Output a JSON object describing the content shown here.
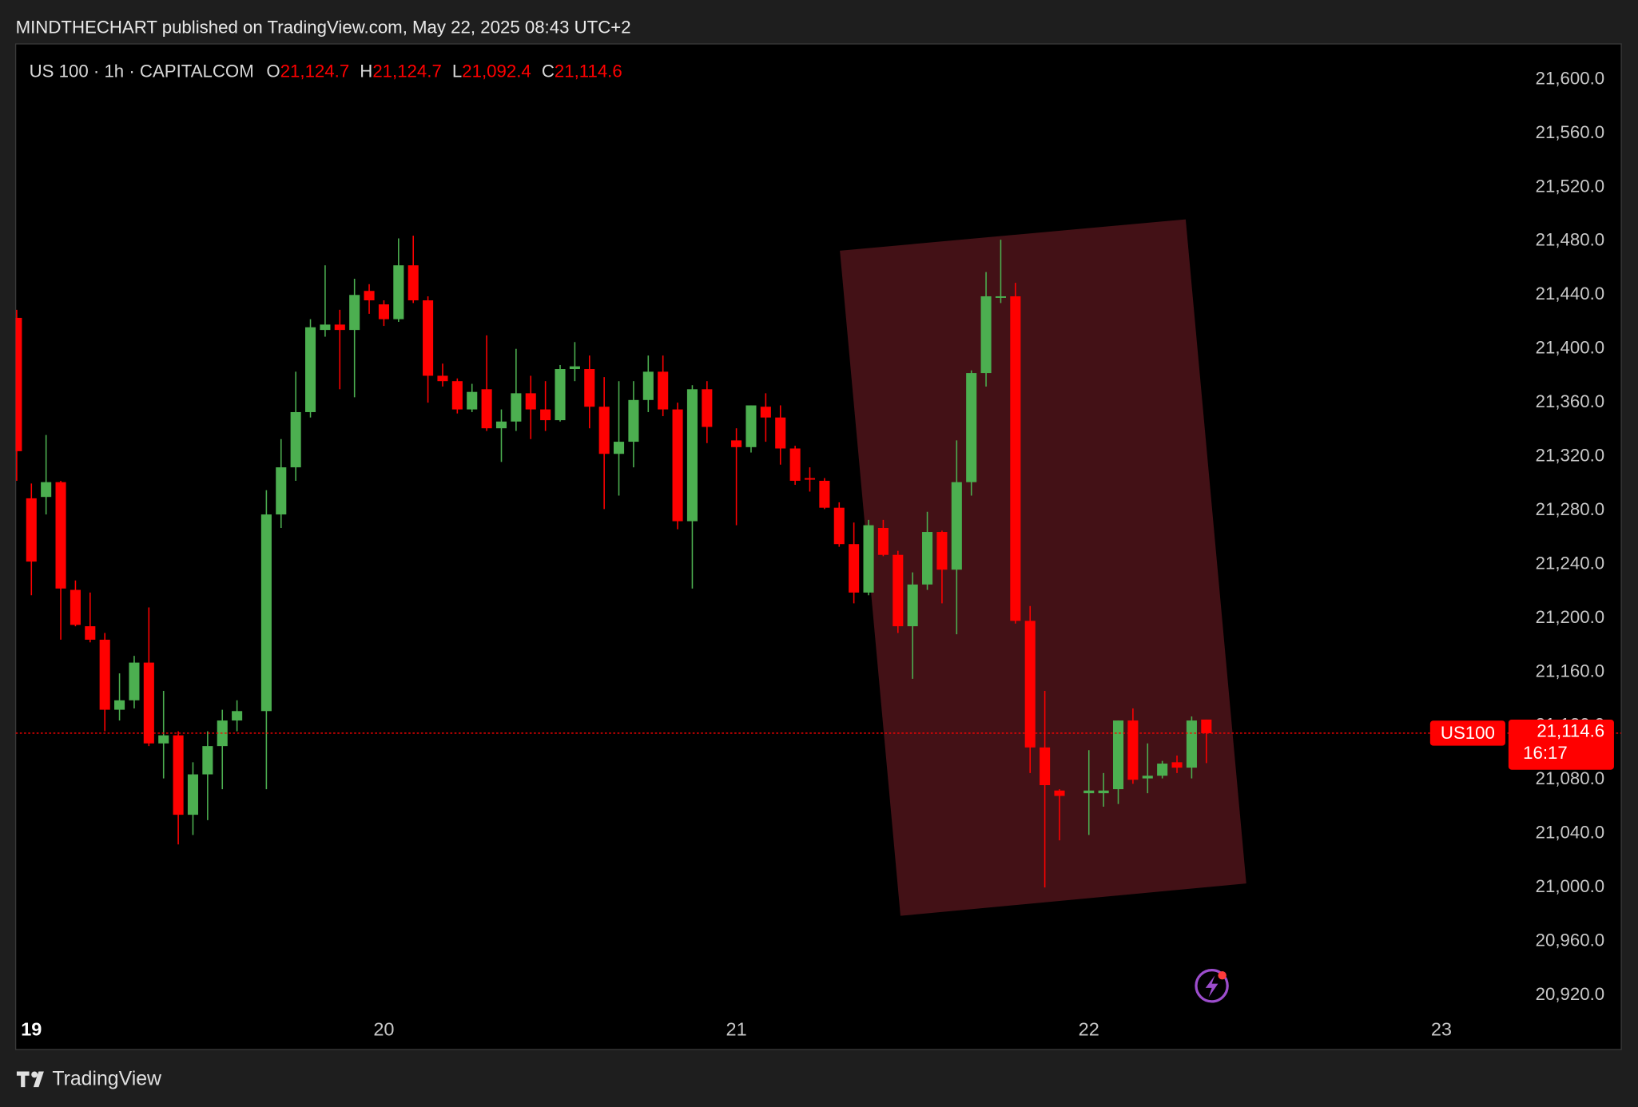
{
  "chart_data": {
    "type": "candlestick",
    "header": "MINDTHECHART published on TradingView.com, May 22, 2025 08:43 UTC+2",
    "title": "US 100 · 1h · CAPITALCOM",
    "legend": [
      {
        "prefix": "O",
        "value": 21124.7,
        "label": "21,124.7"
      },
      {
        "prefix": "H",
        "value": 21124.7,
        "label": "21,124.7"
      },
      {
        "prefix": "L",
        "value": 21092.4,
        "label": "21,092.4"
      },
      {
        "prefix": "C",
        "value": 21114.6,
        "label": "21,114.6"
      }
    ],
    "brand": "TradingView",
    "symbol_tag": "US100",
    "last_price": {
      "value": 21114.6,
      "label": "21,114.6"
    },
    "countdown": "16:17",
    "up_color": "#4caf50",
    "down_color": "#ff0000",
    "grid": false,
    "xlim": [
      -1.07,
      108.25
    ],
    "xticks": [
      {
        "value": 0,
        "label": "19"
      },
      {
        "value": 24,
        "label": "20"
      },
      {
        "value": 48,
        "label": "21"
      },
      {
        "value": 72,
        "label": "22"
      },
      {
        "value": 96,
        "label": "23"
      }
    ],
    "ylim": [
      20879.7,
      21626.4
    ],
    "yticks": [
      {
        "value": 20920,
        "label": "20,920.0"
      },
      {
        "value": 20960,
        "label": "20,960.0"
      },
      {
        "value": 21000,
        "label": "21,000.0"
      },
      {
        "value": 21040,
        "label": "21,040.0"
      },
      {
        "value": 21080,
        "label": "21,080.0"
      },
      {
        "value": 21120,
        "label": "21,120.0"
      },
      {
        "value": 21160,
        "label": "21,160.0"
      },
      {
        "value": 21200,
        "label": "21,200.0"
      },
      {
        "value": 21240,
        "label": "21,240.0"
      },
      {
        "value": 21280,
        "label": "21,280.0"
      },
      {
        "value": 21320,
        "label": "21,320.0"
      },
      {
        "value": 21360,
        "label": "21,360.0"
      },
      {
        "value": 21400,
        "label": "21,400.0"
      },
      {
        "value": 21440,
        "label": "21,440.0"
      },
      {
        "value": 21480,
        "label": "21,480.0"
      },
      {
        "value": 21520,
        "label": "21,520.0"
      },
      {
        "value": 21560,
        "label": "21,560.0"
      },
      {
        "value": 21600,
        "label": "21,600.0"
      }
    ],
    "series": [
      {
        "name": "US 100",
        "x": [
          -1,
          0,
          1,
          2,
          3,
          4,
          5,
          6,
          7,
          8,
          9,
          10,
          11,
          12,
          13,
          14,
          16,
          17,
          18,
          19,
          20,
          21,
          22,
          23,
          24,
          25,
          26,
          27,
          28,
          29,
          30,
          31,
          32,
          33,
          34,
          35,
          36,
          37,
          38,
          39,
          40,
          41,
          42,
          43,
          44,
          45,
          46,
          48,
          49,
          50,
          51,
          52,
          53,
          54,
          55,
          56,
          57,
          58,
          59,
          60,
          61,
          62,
          63,
          64,
          65,
          66,
          67,
          68,
          69,
          70,
          72,
          73,
          74,
          75,
          76,
          77,
          78,
          79,
          80
        ],
        "open": [
          21423,
          21289,
          21290,
          21301,
          21221,
          21194,
          21184,
          21132,
          21139,
          21167,
          21107,
          21113,
          21054,
          21084,
          21105,
          21124,
          21131,
          21277,
          21312,
          21353,
          21414,
          21418,
          21414,
          21443,
          21433,
          21422,
          21462,
          21436,
          21380,
          21376,
          21355,
          21370,
          21341,
          21346,
          21367,
          21355,
          21347,
          21385,
          21385,
          21357,
          21322,
          21331,
          21362,
          21383,
          21355,
          21272,
          21370,
          21332,
          21327,
          21357,
          21349,
          21326,
          21304,
          21302,
          21282,
          21255,
          21219,
          21267,
          21247,
          21194,
          21225,
          21264,
          21236,
          21301,
          21382,
          21438,
          21439,
          21198,
          21104,
          21072,
          21070,
          21070,
          21073,
          21124,
          21081,
          21083,
          21093,
          21089,
          21124.7
        ],
        "high": [
          21429,
          21300,
          21336,
          21302,
          21228,
          21219,
          21189,
          21159,
          21172,
          21208,
          21146,
          21116,
          21093,
          21116,
          21132,
          21139,
          21295,
          21333,
          21383,
          21422,
          21462,
          21429,
          21452,
          21448,
          21436,
          21482,
          21484,
          21439,
          21389,
          21378,
          21374,
          21410,
          21355,
          21400,
          21380,
          21376,
          21388,
          21405,
          21395,
          21379,
          21376,
          21376,
          21395,
          21395,
          21360,
          21373,
          21376,
          21341,
          21358,
          21367,
          21358,
          21328,
          21312,
          21304,
          21286,
          21271,
          21273,
          21273,
          21250,
          21234,
          21279,
          21265,
          21332,
          21384,
          21457,
          21481,
          21449,
          21209,
          21146,
          21073,
          21102,
          21085,
          21124,
          21133,
          21107,
          21094,
          21098,
          21127,
          21124.7
        ],
        "low": [
          21302,
          21217,
          21277,
          21184,
          21194,
          21182,
          21116,
          21124,
          21133,
          21105,
          21081,
          21032,
          21039,
          21050,
          21073,
          21116,
          21073,
          21267,
          21302,
          21349,
          21409,
          21370,
          21364,
          21426,
          21417,
          21420,
          21434,
          21360,
          21372,
          21352,
          21353,
          21339,
          21316,
          21339,
          21333,
          21339,
          21346,
          21376,
          21341,
          21281,
          21291,
          21312,
          21353,
          21350,
          21266,
          21222,
          21330,
          21269,
          21323,
          21331,
          21314,
          21299,
          21294,
          21281,
          21253,
          21211,
          21217,
          21246,
          21189,
          21155,
          21221,
          21211,
          21188,
          21291,
          21372,
          21434,
          21196,
          21085,
          21000,
          21035,
          21039,
          21060,
          21062,
          21077,
          21070,
          21081,
          21085,
          21081,
          21092.4
        ],
        "close": [
          21324,
          21242,
          21301,
          21222,
          21195,
          21184,
          21132,
          21139,
          21167,
          21107,
          21113,
          21054,
          21084,
          21105,
          21124,
          21131,
          21277,
          21312,
          21353,
          21416,
          21418,
          21414,
          21440,
          21436,
          21422,
          21462,
          21436,
          21380,
          21376,
          21355,
          21368,
          21341,
          21346,
          21367,
          21355,
          21347,
          21385,
          21387,
          21357,
          21322,
          21331,
          21362,
          21383,
          21355,
          21272,
          21370,
          21342,
          21327,
          21358,
          21349,
          21326,
          21302,
          21303,
          21282,
          21255,
          21219,
          21269,
          21247,
          21194,
          21225,
          21264,
          21236,
          21301,
          21382,
          21439,
          21439,
          21198,
          21104,
          21076,
          21068,
          21072,
          21072,
          21124,
          21080,
          21083,
          21092,
          21089,
          21124,
          21114.6
        ]
      }
    ]
  }
}
